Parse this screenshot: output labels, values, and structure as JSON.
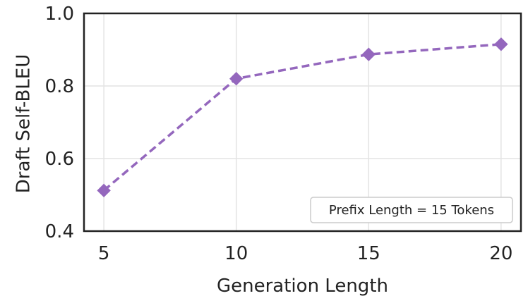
{
  "chart_data": {
    "type": "line",
    "title": "",
    "xlabel": "Generation Length",
    "ylabel": "Draft Self-BLEU",
    "x": [
      5,
      10,
      15,
      20
    ],
    "xticks": [
      5,
      10,
      15,
      20
    ],
    "xlim": [
      4.25,
      20.75
    ],
    "yticks": [
      "0.4",
      "0.6",
      "0.8",
      "1.0"
    ],
    "ylim": [
      0.4,
      1.0
    ],
    "grid": true,
    "series": [
      {
        "values": [
          0.512,
          0.82,
          0.887,
          0.915
        ],
        "color": "#9467bd",
        "line_style": "dashed",
        "marker": "diamond"
      }
    ],
    "annotation": "Prefix Length = 15 Tokens",
    "annotation_placement": "bottom-right"
  }
}
